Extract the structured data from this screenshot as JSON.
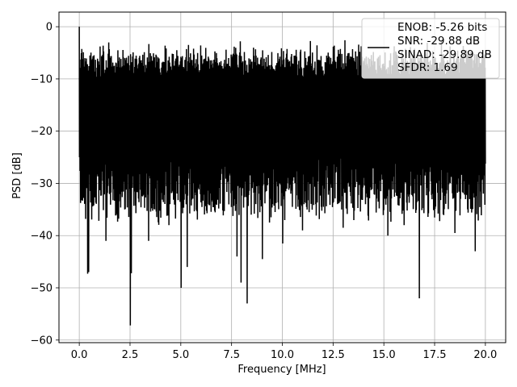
{
  "chart_data": {
    "type": "line",
    "title": "",
    "xlabel": "Frequency [MHz]",
    "ylabel": "PSD [dB]",
    "xlim": [
      -1.0,
      21.0
    ],
    "ylim": [
      -60.5,
      2.8
    ],
    "xticks": [
      0.0,
      2.5,
      5.0,
      7.5,
      10.0,
      12.5,
      15.0,
      17.5,
      20.0
    ],
    "xtick_labels": [
      "0.0",
      "2.5",
      "5.0",
      "7.5",
      "10.0",
      "12.5",
      "15.0",
      "17.5",
      "20.0"
    ],
    "yticks": [
      0,
      -10,
      -20,
      -30,
      -40,
      -50,
      -60
    ],
    "ytick_labels": [
      "0",
      "−10",
      "−20",
      "−30",
      "−40",
      "−50",
      "−60"
    ],
    "grid": true,
    "legend_position": "top-right",
    "legend_lines": [
      "ENOB: -5.26 bits",
      "SNR: -29.88 dB",
      "SINAD: -29.89 dB",
      "SFDR: 1.69"
    ],
    "series": [
      {
        "color": "#000000",
        "x_start": 0.0,
        "x_end": 20.0,
        "num_points": 1600,
        "peak": [
          0.0,
          0.0
        ],
        "band_top_approx": -6,
        "band_bottom_approx": -33,
        "deep_dips": [
          [
            0.4,
            -47.3
          ],
          [
            0.45,
            -47.0
          ],
          [
            1.3,
            -41.0
          ],
          [
            2.5,
            -57.2
          ],
          [
            2.55,
            -47.2
          ],
          [
            3.4,
            -41.0
          ],
          [
            4.4,
            -38.0
          ],
          [
            5.0,
            -50.0
          ],
          [
            5.3,
            -46.0
          ],
          [
            7.75,
            -44.0
          ],
          [
            7.95,
            -49.0
          ],
          [
            8.25,
            -53.0
          ],
          [
            9.0,
            -44.5
          ],
          [
            10.0,
            -41.5
          ],
          [
            11.0,
            -39.0
          ],
          [
            13.0,
            -38.5
          ],
          [
            15.2,
            -40.0
          ],
          [
            16.0,
            -38.0
          ],
          [
            16.75,
            -52.0
          ],
          [
            18.5,
            -39.5
          ],
          [
            19.5,
            -43.0
          ]
        ]
      }
    ]
  }
}
